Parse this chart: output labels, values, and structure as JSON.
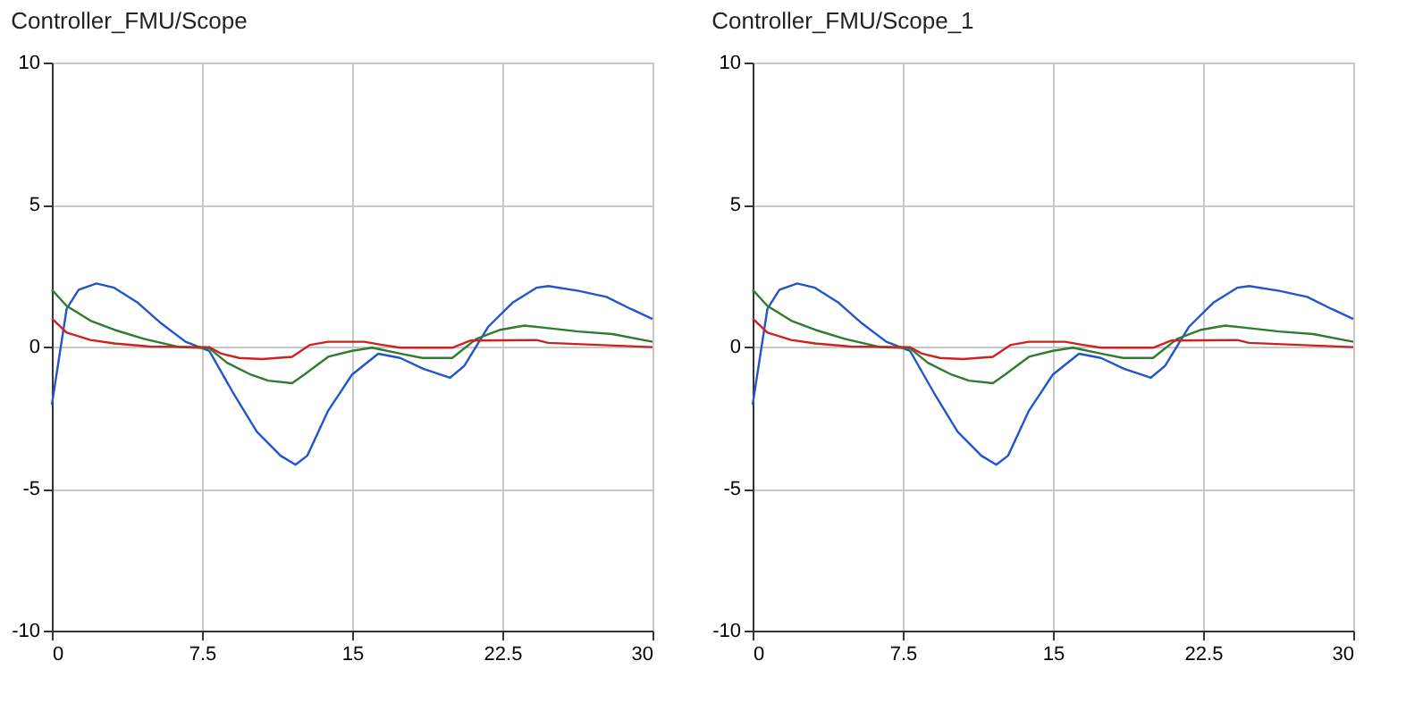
{
  "chart_data": [
    {
      "type": "line",
      "title": "Controller_FMU/Scope",
      "xlim": [
        0,
        30
      ],
      "ylim": [
        -10,
        10
      ],
      "xticks": [
        0,
        7.5,
        15,
        22.5,
        30
      ],
      "yticks": [
        -10,
        -5,
        0,
        5,
        10
      ],
      "grid": true,
      "marker": "none",
      "line_style": "solid",
      "series": [
        {
          "color": "#2255cc",
          "x": [
            0,
            0.74,
            1.34,
            2.23,
            3.12,
            4.3,
            5.49,
            6.68,
            7.86,
            9.05,
            10.24,
            11.42,
            12.17,
            12.76,
            13.8,
            14.99,
            16.3,
            17.4,
            18.55,
            19.88,
            20.6,
            21.8,
            23.0,
            24.2,
            24.8,
            26.3,
            27.7,
            28.9,
            30
          ],
          "values": [
            -2.05,
            1.33,
            2.0,
            2.22,
            2.07,
            1.54,
            0.8,
            0.17,
            -0.15,
            -1.62,
            -3.0,
            -3.84,
            -4.16,
            -3.84,
            -2.26,
            -0.99,
            -0.25,
            -0.4,
            -0.78,
            -1.1,
            -0.68,
            0.7,
            1.54,
            2.07,
            2.13,
            1.96,
            1.75,
            1.33,
            0.97
          ]
        },
        {
          "color": "#2e7d2e",
          "x": [
            0,
            0.74,
            1.93,
            3.12,
            4.6,
            6.38,
            7.86,
            8.75,
            9.94,
            10.8,
            12.0,
            12.6,
            13.8,
            15.0,
            16.0,
            17.4,
            18.5,
            20.0,
            21.2,
            22.4,
            23.6,
            24.8,
            26.3,
            28.0,
            30
          ],
          "values": [
            2.0,
            1.43,
            0.91,
            0.59,
            0.27,
            -0.02,
            -0.06,
            -0.57,
            -0.99,
            -1.2,
            -1.29,
            -0.99,
            -0.36,
            -0.15,
            -0.04,
            -0.25,
            -0.4,
            -0.4,
            0.27,
            0.59,
            0.74,
            0.65,
            0.53,
            0.44,
            0.17
          ]
        },
        {
          "color": "#cc2222",
          "x": [
            0,
            0.74,
            1.93,
            3.12,
            4.9,
            7.86,
            8.46,
            9.35,
            10.5,
            12.0,
            12.9,
            13.8,
            15.6,
            16.5,
            17.4,
            20.0,
            20.9,
            24.2,
            24.8,
            30
          ],
          "values": [
            0.99,
            0.49,
            0.23,
            0.11,
            0,
            -0.02,
            -0.25,
            -0.4,
            -0.44,
            -0.36,
            0.06,
            0.17,
            0.17,
            0.06,
            -0.04,
            -0.04,
            0.21,
            0.23,
            0.13,
            -0.02
          ]
        }
      ]
    },
    {
      "type": "line",
      "title": "Controller_FMU/Scope_1",
      "xlim": [
        0,
        30
      ],
      "ylim": [
        -10,
        10
      ],
      "xticks": [
        0,
        7.5,
        15,
        22.5,
        30
      ],
      "yticks": [
        -10,
        -5,
        0,
        5,
        10
      ],
      "grid": true,
      "marker": "none",
      "line_style": "solid",
      "series": [
        {
          "color": "#2255cc",
          "x": [
            0,
            0.74,
            1.34,
            2.23,
            3.12,
            4.3,
            5.49,
            6.68,
            7.86,
            9.05,
            10.24,
            11.42,
            12.17,
            12.76,
            13.8,
            14.99,
            16.3,
            17.4,
            18.55,
            19.88,
            20.6,
            21.8,
            23.0,
            24.2,
            24.8,
            26.3,
            27.7,
            28.9,
            30
          ],
          "values": [
            -2.05,
            1.33,
            2.0,
            2.22,
            2.07,
            1.54,
            0.8,
            0.17,
            -0.15,
            -1.62,
            -3.0,
            -3.84,
            -4.16,
            -3.84,
            -2.26,
            -0.99,
            -0.25,
            -0.4,
            -0.78,
            -1.1,
            -0.68,
            0.7,
            1.54,
            2.07,
            2.13,
            1.96,
            1.75,
            1.33,
            0.97
          ]
        },
        {
          "color": "#2e7d2e",
          "x": [
            0,
            0.74,
            1.93,
            3.12,
            4.6,
            6.38,
            7.86,
            8.75,
            9.94,
            10.8,
            12.0,
            12.6,
            13.8,
            15.0,
            16.0,
            17.4,
            18.5,
            20.0,
            21.2,
            22.4,
            23.6,
            24.8,
            26.3,
            28.0,
            30
          ],
          "values": [
            2.0,
            1.43,
            0.91,
            0.59,
            0.27,
            -0.02,
            -0.06,
            -0.57,
            -0.99,
            -1.2,
            -1.29,
            -0.99,
            -0.36,
            -0.15,
            -0.04,
            -0.25,
            -0.4,
            -0.4,
            0.27,
            0.59,
            0.74,
            0.65,
            0.53,
            0.44,
            0.17
          ]
        },
        {
          "color": "#cc2222",
          "x": [
            0,
            0.74,
            1.93,
            3.12,
            4.9,
            7.86,
            8.46,
            9.35,
            10.5,
            12.0,
            12.9,
            13.8,
            15.6,
            16.5,
            17.4,
            20.0,
            20.9,
            24.2,
            24.8,
            30
          ],
          "values": [
            0.99,
            0.49,
            0.23,
            0.11,
            0,
            -0.02,
            -0.25,
            -0.4,
            -0.44,
            -0.36,
            0.06,
            0.17,
            0.17,
            0.06,
            -0.04,
            -0.04,
            0.21,
            0.23,
            0.13,
            -0.02
          ]
        }
      ]
    }
  ]
}
